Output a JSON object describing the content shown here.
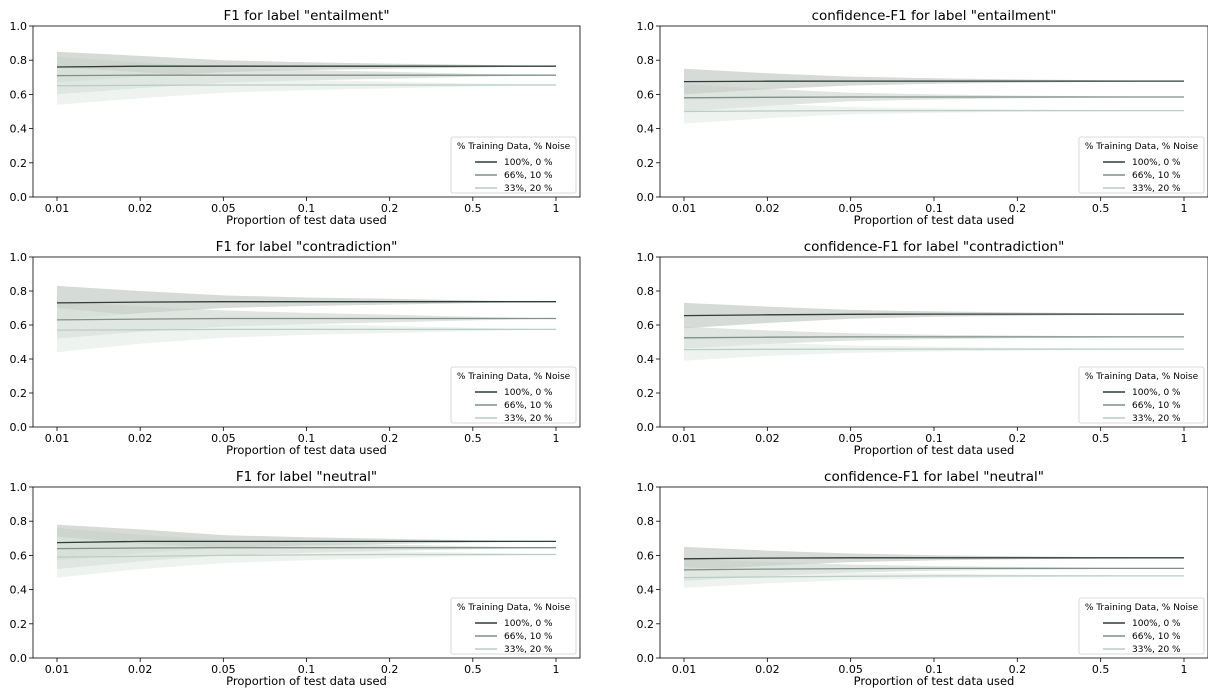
{
  "chart_data": [
    {
      "type": "line",
      "title": "F1 for label \"entailment\"",
      "xlabel": "Proportion of test data used",
      "ylabel": "",
      "x": [
        "0.01",
        "0.02",
        "0.05",
        "0.1",
        "0.2",
        "0.5",
        "1"
      ],
      "ylim": [
        0,
        1
      ],
      "yticks": [
        "0.0",
        "0.2",
        "0.4",
        "0.6",
        "0.8",
        "1.0"
      ],
      "grid": false,
      "legend": {
        "title": "% Training Data, % Noise",
        "placement": "bottom-right"
      },
      "series": [
        {
          "name": "100%, 0 %",
          "color": "#2f3d38",
          "band": "#b7beb7",
          "values": [
            0.76,
            0.765,
            0.765,
            0.765,
            0.765,
            0.765,
            0.765
          ],
          "lower": [
            0.67,
            0.705,
            0.73,
            0.742,
            0.75,
            0.757,
            0.765
          ],
          "upper": [
            0.85,
            0.825,
            0.8,
            0.788,
            0.78,
            0.773,
            0.765
          ]
        },
        {
          "name": "66%, 10 %",
          "color": "#7f9088",
          "band": "#c6d0c8",
          "values": [
            0.71,
            0.712,
            0.712,
            0.712,
            0.712,
            0.712,
            0.712
          ],
          "lower": [
            0.6,
            0.637,
            0.668,
            0.682,
            0.692,
            0.703,
            0.712
          ],
          "upper": [
            0.82,
            0.787,
            0.756,
            0.742,
            0.732,
            0.721,
            0.712
          ]
        },
        {
          "name": "33%, 20 %",
          "color": "#b8cec4",
          "band": "#e0e9e4",
          "values": [
            0.65,
            0.653,
            0.655,
            0.655,
            0.655,
            0.655,
            0.655
          ],
          "lower": [
            0.54,
            0.577,
            0.61,
            0.625,
            0.635,
            0.646,
            0.655
          ],
          "upper": [
            0.76,
            0.729,
            0.7,
            0.685,
            0.675,
            0.664,
            0.655
          ]
        }
      ]
    },
    {
      "type": "line",
      "title": "confidence-F1 for label \"entailment\"",
      "xlabel": "Proportion of test data used",
      "ylabel": "",
      "x": [
        "0.01",
        "0.02",
        "0.05",
        "0.1",
        "0.2",
        "0.5",
        "1"
      ],
      "ylim": [
        0,
        1
      ],
      "yticks": [
        "0.0",
        "0.2",
        "0.4",
        "0.6",
        "0.8",
        "1.0"
      ],
      "grid": false,
      "legend": {
        "title": "% Training Data, % Noise",
        "placement": "bottom-right"
      },
      "series": [
        {
          "name": "100%, 0 %",
          "color": "#2f3d38",
          "band": "#b7beb7",
          "values": [
            0.675,
            0.677,
            0.678,
            0.678,
            0.678,
            0.678,
            0.678
          ],
          "lower": [
            0.6,
            0.63,
            0.652,
            0.662,
            0.668,
            0.673,
            0.678
          ],
          "upper": [
            0.75,
            0.724,
            0.704,
            0.694,
            0.688,
            0.683,
            0.678
          ]
        },
        {
          "name": "66%, 10 %",
          "color": "#7f9088",
          "band": "#c6d0c8",
          "values": [
            0.58,
            0.583,
            0.585,
            0.585,
            0.585,
            0.585,
            0.585
          ],
          "lower": [
            0.5,
            0.533,
            0.56,
            0.57,
            0.577,
            0.581,
            0.585
          ],
          "upper": [
            0.66,
            0.633,
            0.61,
            0.6,
            0.593,
            0.589,
            0.585
          ]
        },
        {
          "name": "33%, 20 %",
          "color": "#b8cec4",
          "band": "#e0e9e4",
          "values": [
            0.5,
            0.503,
            0.505,
            0.505,
            0.505,
            0.505,
            0.505
          ],
          "lower": [
            0.43,
            0.46,
            0.484,
            0.492,
            0.498,
            0.502,
            0.505
          ],
          "upper": [
            0.57,
            0.546,
            0.526,
            0.518,
            0.512,
            0.508,
            0.505
          ]
        }
      ]
    },
    {
      "type": "line",
      "title": "F1 for label \"contradiction\"",
      "xlabel": "Proportion of test data used",
      "ylabel": "",
      "x": [
        "0.01",
        "0.02",
        "0.05",
        "0.1",
        "0.2",
        "0.5",
        "1"
      ],
      "ylim": [
        0,
        1
      ],
      "yticks": [
        "0.0",
        "0.2",
        "0.4",
        "0.6",
        "0.8",
        "1.0"
      ],
      "grid": false,
      "legend": {
        "title": "% Training Data, % Noise",
        "placement": "bottom-right"
      },
      "series": [
        {
          "name": "100%, 0 %",
          "color": "#2f3d38",
          "band": "#b7beb7",
          "values": [
            0.73,
            0.735,
            0.737,
            0.737,
            0.737,
            0.737,
            0.737
          ],
          "lower": [
            0.63,
            0.67,
            0.7,
            0.712,
            0.72,
            0.729,
            0.737
          ],
          "upper": [
            0.83,
            0.8,
            0.774,
            0.762,
            0.754,
            0.745,
            0.737
          ]
        },
        {
          "name": "66%, 10 %",
          "color": "#7f9088",
          "band": "#c6d0c8",
          "values": [
            0.63,
            0.635,
            0.638,
            0.638,
            0.638,
            0.638,
            0.638
          ],
          "lower": [
            0.52,
            0.56,
            0.59,
            0.605,
            0.615,
            0.627,
            0.638
          ],
          "upper": [
            0.74,
            0.71,
            0.686,
            0.671,
            0.661,
            0.649,
            0.638
          ]
        },
        {
          "name": "33%, 20 %",
          "color": "#b8cec4",
          "band": "#e0e9e4",
          "values": [
            0.57,
            0.572,
            0.574,
            0.574,
            0.574,
            0.574,
            0.574
          ],
          "lower": [
            0.44,
            0.49,
            0.525,
            0.542,
            0.553,
            0.564,
            0.574
          ],
          "upper": [
            0.7,
            0.654,
            0.623,
            0.606,
            0.595,
            0.584,
            0.574
          ]
        }
      ]
    },
    {
      "type": "line",
      "title": "confidence-F1 for label \"contradiction\"",
      "xlabel": "Proportion of test data used",
      "ylabel": "",
      "x": [
        "0.01",
        "0.02",
        "0.05",
        "0.1",
        "0.2",
        "0.5",
        "1"
      ],
      "ylim": [
        0,
        1
      ],
      "yticks": [
        "0.0",
        "0.2",
        "0.4",
        "0.6",
        "0.8",
        "1.0"
      ],
      "grid": false,
      "legend": {
        "title": "% Training Data, % Noise",
        "placement": "bottom-right"
      },
      "series": [
        {
          "name": "100%, 0 %",
          "color": "#2f3d38",
          "band": "#b7beb7",
          "values": [
            0.655,
            0.66,
            0.663,
            0.664,
            0.664,
            0.664,
            0.664
          ],
          "lower": [
            0.58,
            0.612,
            0.637,
            0.648,
            0.654,
            0.659,
            0.664
          ],
          "upper": [
            0.73,
            0.708,
            0.689,
            0.68,
            0.674,
            0.669,
            0.664
          ]
        },
        {
          "name": "66%, 10 %",
          "color": "#7f9088",
          "band": "#c6d0c8",
          "values": [
            0.525,
            0.528,
            0.53,
            0.53,
            0.53,
            0.53,
            0.53
          ],
          "lower": [
            0.46,
            0.488,
            0.508,
            0.517,
            0.522,
            0.526,
            0.53
          ],
          "upper": [
            0.59,
            0.568,
            0.552,
            0.543,
            0.538,
            0.534,
            0.53
          ]
        },
        {
          "name": "33%, 20 %",
          "color": "#b8cec4",
          "band": "#e0e9e4",
          "values": [
            0.455,
            0.457,
            0.458,
            0.458,
            0.458,
            0.458,
            0.458
          ],
          "lower": [
            0.39,
            0.418,
            0.436,
            0.444,
            0.45,
            0.454,
            0.458
          ],
          "upper": [
            0.52,
            0.496,
            0.48,
            0.472,
            0.466,
            0.462,
            0.458
          ]
        }
      ]
    },
    {
      "type": "line",
      "title": "F1 for label \"neutral\"",
      "xlabel": "Proportion of test data used",
      "ylabel": "",
      "x": [
        "0.01",
        "0.02",
        "0.05",
        "0.1",
        "0.2",
        "0.5",
        "1"
      ],
      "ylim": [
        0,
        1
      ],
      "yticks": [
        "0.0",
        "0.2",
        "0.4",
        "0.6",
        "0.8",
        "1.0"
      ],
      "grid": false,
      "legend": {
        "title": "% Training Data, % Noise",
        "placement": "bottom-right"
      },
      "series": [
        {
          "name": "100%, 0 %",
          "color": "#2f3d38",
          "band": "#b7beb7",
          "values": [
            0.675,
            0.682,
            0.682,
            0.682,
            0.682,
            0.682,
            0.682
          ],
          "lower": [
            0.57,
            0.612,
            0.645,
            0.658,
            0.667,
            0.675,
            0.682
          ],
          "upper": [
            0.78,
            0.752,
            0.719,
            0.706,
            0.697,
            0.689,
            0.682
          ]
        },
        {
          "name": "66%, 10 %",
          "color": "#7f9088",
          "band": "#c6d0c8",
          "values": [
            0.64,
            0.643,
            0.645,
            0.645,
            0.645,
            0.645,
            0.645
          ],
          "lower": [
            0.52,
            0.565,
            0.6,
            0.615,
            0.627,
            0.636,
            0.645
          ],
          "upper": [
            0.76,
            0.721,
            0.69,
            0.675,
            0.663,
            0.654,
            0.645
          ]
        },
        {
          "name": "33%, 20 %",
          "color": "#b8cec4",
          "band": "#e0e9e4",
          "values": [
            0.59,
            0.594,
            0.6,
            0.603,
            0.605,
            0.605,
            0.605
          ],
          "lower": [
            0.47,
            0.52,
            0.555,
            0.572,
            0.585,
            0.595,
            0.605
          ],
          "upper": [
            0.71,
            0.668,
            0.645,
            0.634,
            0.625,
            0.615,
            0.605
          ]
        }
      ]
    },
    {
      "type": "line",
      "title": "confidence-F1 for label \"neutral\"",
      "xlabel": "Proportion of test data used",
      "ylabel": "",
      "x": [
        "0.01",
        "0.02",
        "0.05",
        "0.1",
        "0.2",
        "0.5",
        "1"
      ],
      "ylim": [
        0,
        1
      ],
      "yticks": [
        "0.0",
        "0.2",
        "0.4",
        "0.6",
        "0.8",
        "1.0"
      ],
      "grid": false,
      "legend": {
        "title": "% Training Data, % Noise",
        "placement": "bottom-right"
      },
      "series": [
        {
          "name": "100%, 0 %",
          "color": "#2f3d38",
          "band": "#b7beb7",
          "values": [
            0.58,
            0.584,
            0.586,
            0.586,
            0.586,
            0.586,
            0.586
          ],
          "lower": [
            0.51,
            0.54,
            0.561,
            0.571,
            0.577,
            0.582,
            0.586
          ],
          "upper": [
            0.65,
            0.628,
            0.611,
            0.601,
            0.595,
            0.59,
            0.586
          ]
        },
        {
          "name": "66%, 10 %",
          "color": "#7f9088",
          "band": "#c6d0c8",
          "values": [
            0.515,
            0.52,
            0.523,
            0.524,
            0.524,
            0.524,
            0.524
          ],
          "lower": [
            0.45,
            0.478,
            0.5,
            0.51,
            0.516,
            0.52,
            0.524
          ],
          "upper": [
            0.58,
            0.562,
            0.546,
            0.538,
            0.532,
            0.528,
            0.524
          ]
        },
        {
          "name": "33%, 20 %",
          "color": "#b8cec4",
          "band": "#e0e9e4",
          "values": [
            0.47,
            0.474,
            0.478,
            0.48,
            0.48,
            0.48,
            0.48
          ],
          "lower": [
            0.41,
            0.436,
            0.456,
            0.466,
            0.472,
            0.476,
            0.48
          ],
          "upper": [
            0.53,
            0.512,
            0.5,
            0.494,
            0.488,
            0.484,
            0.48
          ]
        }
      ]
    }
  ]
}
